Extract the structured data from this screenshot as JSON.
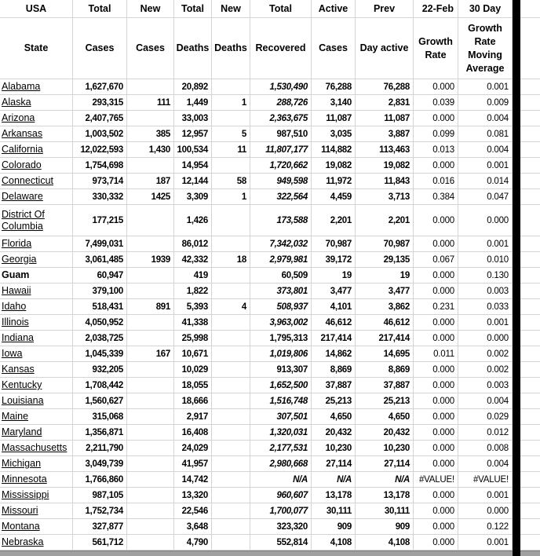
{
  "sheet": {
    "header_row1": {
      "usa": "USA",
      "total_cases": "Total",
      "new_cases": "New",
      "total_deaths": "Total",
      "new_deaths": "New",
      "total_recovered": "Total",
      "active": "Active",
      "prev": "Prev",
      "date": "22-Feb",
      "day30": "30 Day"
    },
    "header_row2": {
      "state": "State",
      "cases": "Cases",
      "cases_new": "Cases",
      "deaths": "Deaths",
      "deaths_new": "Deaths",
      "recovered": "Recovered",
      "cases_active": "Cases",
      "day_active": "Day active",
      "growth_rate": "Growth Rate",
      "growth_ma": "Growth Rate Moving Average"
    },
    "colors": {
      "error_triangle": "#1e7e1e",
      "gridline": "#d4d4d4",
      "divider_bar": "#000000",
      "bottom_bar": "#a0a0a0"
    },
    "rows": [
      {
        "state": "Alabama",
        "cases": "1,627,670",
        "new_cases": "",
        "deaths": "20,892",
        "new_deaths": "",
        "recovered": "1,530,490",
        "recovered_italic": true,
        "active": "76,288",
        "prev": "76,288",
        "growth": "0.000",
        "ma30": "0.001",
        "error_flag": true
      },
      {
        "state": "Alaska",
        "cases": "293,315",
        "new_cases": "111",
        "deaths": "1,449",
        "new_deaths": "1",
        "recovered": "288,726",
        "recovered_italic": true,
        "active": "3,140",
        "prev": "2,831",
        "growth": "0.039",
        "ma30": "0.009",
        "error_flag": true
      },
      {
        "state": "Arizona",
        "cases": "2,407,765",
        "new_cases": "",
        "deaths": "33,003",
        "new_deaths": "",
        "recovered": "2,363,675",
        "recovered_italic": true,
        "active": "11,087",
        "prev": "11,087",
        "growth": "0.000",
        "ma30": "0.004",
        "error_flag": true
      },
      {
        "state": "Arkansas",
        "cases": "1,003,502",
        "new_cases": "385",
        "deaths": "12,957",
        "new_deaths": "5",
        "recovered": "987,510",
        "recovered_italic": false,
        "active": "3,035",
        "prev": "3,887",
        "growth": "0.099",
        "ma30": "0.081",
        "error_flag": true
      },
      {
        "state": "California",
        "cases": "12,022,593",
        "new_cases": "1,430",
        "deaths": "100,534",
        "new_deaths": "11",
        "recovered": "11,807,177",
        "recovered_italic": true,
        "active": "114,882",
        "prev": "113,463",
        "growth": "0.013",
        "ma30": "0.004",
        "error_flag": true
      },
      {
        "state": "Colorado",
        "cases": "1,754,698",
        "new_cases": "",
        "deaths": "14,954",
        "new_deaths": "",
        "recovered": "1,720,662",
        "recovered_italic": true,
        "active": "19,082",
        "prev": "19,082",
        "growth": "0.000",
        "ma30": "0.001",
        "error_flag": true
      },
      {
        "state": "Connecticut",
        "cases": "973,714",
        "new_cases": "187",
        "deaths": "12,144",
        "new_deaths": "58",
        "recovered": "949,598",
        "recovered_italic": true,
        "active": "11,972",
        "prev": "11,843",
        "growth": "0.016",
        "ma30": "0.014",
        "error_flag": true
      },
      {
        "state": "Delaware",
        "cases": "330,332",
        "new_cases": "1425",
        "deaths": "3,309",
        "new_deaths": "1",
        "recovered": "322,564",
        "recovered_italic": true,
        "active": "4,459",
        "prev": "3,713",
        "growth": "0.384",
        "ma30": "0.047",
        "error_flag": true
      },
      {
        "state": "District Of Columbia",
        "tall": true,
        "cases": "177,215",
        "new_cases": "",
        "deaths": "1,426",
        "new_deaths": "",
        "recovered": "173,588",
        "recovered_italic": true,
        "active": "2,201",
        "prev": "2,201",
        "growth": "0.000",
        "ma30": "0.000",
        "error_flag": true
      },
      {
        "state": "Florida",
        "cases": "7,499,031",
        "new_cases": "",
        "deaths": "86,012",
        "new_deaths": "",
        "recovered": "7,342,032",
        "recovered_italic": true,
        "active": "70,987",
        "prev": "70,987",
        "growth": "0.000",
        "ma30": "0.001",
        "error_flag": true
      },
      {
        "state": "Georgia",
        "cases": "3,061,485",
        "new_cases": "1939",
        "deaths": "42,332",
        "new_deaths": "18",
        "recovered": "2,979,981",
        "recovered_italic": true,
        "active": "39,172",
        "prev": "29,135",
        "growth": "0.067",
        "ma30": "0.010",
        "error_flag": true
      },
      {
        "state": "Guam",
        "bold": true,
        "cases": "60,947",
        "new_cases": "",
        "deaths": "419",
        "new_deaths": "",
        "recovered": "60,509",
        "recovered_italic": false,
        "active": "19",
        "prev": "19",
        "growth": "0.000",
        "ma30": "0.130",
        "error_flag": true
      },
      {
        "state": "Hawaii",
        "cases": "379,100",
        "new_cases": "",
        "deaths": "1,822",
        "new_deaths": "",
        "recovered": "373,801",
        "recovered_italic": true,
        "active": "3,477",
        "prev": "3,477",
        "growth": "0.000",
        "ma30": "0.003",
        "error_flag": true
      },
      {
        "state": "Idaho",
        "cases": "518,431",
        "new_cases": "891",
        "deaths": "5,393",
        "new_deaths": "4",
        "recovered": "508,937",
        "recovered_italic": true,
        "active": "4,101",
        "prev": "3,862",
        "growth": "0.231",
        "ma30": "0.033",
        "error_flag": true
      },
      {
        "state": "Illinois",
        "cases": "4,050,952",
        "new_cases": "",
        "deaths": "41,338",
        "new_deaths": "",
        "recovered": "3,963,002",
        "recovered_italic": true,
        "active": "46,612",
        "prev": "46,612",
        "growth": "0.000",
        "ma30": "0.001",
        "error_flag": true
      },
      {
        "state": "Indiana",
        "cases": "2,038,725",
        "new_cases": "",
        "deaths": "25,998",
        "new_deaths": "",
        "recovered": "1,795,313",
        "recovered_italic": false,
        "active": "217,414",
        "prev": "217,414",
        "growth": "0.000",
        "ma30": "0.000",
        "error_flag": true
      },
      {
        "state": "Iowa",
        "cases": "1,045,339",
        "new_cases": "167",
        "deaths": "10,671",
        "new_deaths": "",
        "recovered": "1,019,806",
        "recovered_italic": true,
        "active": "14,862",
        "prev": "14,695",
        "growth": "0.011",
        "ma30": "0.002",
        "error_flag": true
      },
      {
        "state": "Kansas",
        "cases": "932,205",
        "new_cases": "",
        "deaths": "10,029",
        "new_deaths": "",
        "recovered": "913,307",
        "recovered_italic": false,
        "active": "8,869",
        "prev": "8,869",
        "growth": "0.000",
        "ma30": "0.002",
        "error_flag": true
      },
      {
        "state": "Kentucky",
        "cases": "1,708,442",
        "new_cases": "",
        "deaths": "18,055",
        "new_deaths": "",
        "recovered": "1,652,500",
        "recovered_italic": true,
        "active": "37,887",
        "prev": "37,887",
        "growth": "0.000",
        "ma30": "0.003",
        "error_flag": true
      },
      {
        "state": "Louisiana",
        "cases": "1,560,627",
        "new_cases": "",
        "deaths": "18,666",
        "new_deaths": "",
        "recovered": "1,516,748",
        "recovered_italic": true,
        "active": "25,213",
        "prev": "25,213",
        "growth": "0.000",
        "ma30": "0.004",
        "error_flag": true
      },
      {
        "state": "Maine",
        "cases": "315,068",
        "new_cases": "",
        "deaths": "2,917",
        "new_deaths": "",
        "recovered": "307,501",
        "recovered_italic": true,
        "active": "4,650",
        "prev": "4,650",
        "growth": "0.000",
        "ma30": "0.029",
        "error_flag": true
      },
      {
        "state": "Maryland",
        "cases": "1,356,871",
        "new_cases": "",
        "deaths": "16,408",
        "new_deaths": "",
        "recovered": "1,320,031",
        "recovered_italic": true,
        "active": "20,432",
        "prev": "20,432",
        "growth": "0.000",
        "ma30": "0.012",
        "error_flag": true
      },
      {
        "state": "Massachusetts",
        "cases": "2,211,790",
        "new_cases": "",
        "deaths": "24,029",
        "new_deaths": "",
        "recovered": "2,177,531",
        "recovered_italic": true,
        "active": "10,230",
        "prev": "10,230",
        "growth": "0.000",
        "ma30": "0.008",
        "error_flag": true
      },
      {
        "state": "Michigan",
        "cases": "3,049,739",
        "new_cases": "",
        "deaths": "41,957",
        "new_deaths": "",
        "recovered": "2,980,668",
        "recovered_italic": true,
        "active": "27,114",
        "prev": "27,114",
        "growth": "0.000",
        "ma30": "0.004",
        "error_flag": true
      },
      {
        "state": "Minnesota",
        "na_row": true,
        "cases": "1,766,860",
        "new_cases": "",
        "deaths": "14,742",
        "new_deaths": "",
        "recovered": "N/A",
        "recovered_italic": true,
        "active": "N/A",
        "prev": "N/A",
        "growth": "#VALUE!",
        "ma30": "#VALUE!",
        "error_flag": true
      },
      {
        "state": "Mississippi",
        "cases": "987,105",
        "new_cases": "",
        "deaths": "13,320",
        "new_deaths": "",
        "recovered": "960,607",
        "recovered_italic": true,
        "active": "13,178",
        "prev": "13,178",
        "growth": "0.000",
        "ma30": "0.001",
        "error_flag": true
      },
      {
        "state": "Missouri",
        "cases": "1,752,734",
        "new_cases": "",
        "deaths": "22,546",
        "new_deaths": "",
        "recovered": "1,700,077",
        "recovered_italic": true,
        "active": "30,111",
        "prev": "30,111",
        "growth": "0.000",
        "ma30": "0.000",
        "error_flag": true
      },
      {
        "state": "Montana",
        "cases": "327,877",
        "new_cases": "",
        "deaths": "3,648",
        "new_deaths": "",
        "recovered": "323,320",
        "recovered_italic": false,
        "active": "909",
        "prev": "909",
        "growth": "0.000",
        "ma30": "0.122",
        "error_flag": true
      },
      {
        "state": "Nebraska",
        "cases": "561,712",
        "new_cases": "",
        "deaths": "4,790",
        "new_deaths": "",
        "recovered": "552,814",
        "recovered_italic": false,
        "active": "4,108",
        "prev": "4,108",
        "growth": "0.000",
        "ma30": "0.001",
        "error_flag": true
      }
    ]
  }
}
